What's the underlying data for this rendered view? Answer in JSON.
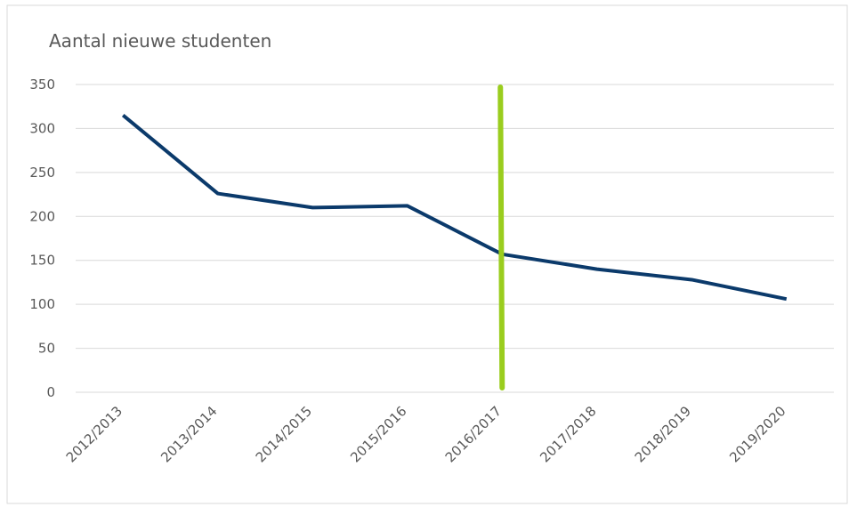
{
  "chart_data": {
    "type": "line",
    "title": "Aantal nieuwe studenten",
    "categories": [
      "2012/2013",
      "2013/2014",
      "2014/2015",
      "2015/2016",
      "2016/2017",
      "2017/2018",
      "2018/2019",
      "2019/2020"
    ],
    "series": [
      {
        "name": "Aantal nieuwe studenten",
        "color": "#0b3a6b",
        "values": [
          315,
          226,
          210,
          212,
          157,
          140,
          128,
          106
        ]
      }
    ],
    "ylim": [
      0,
      350
    ],
    "yticks": [
      0,
      50,
      100,
      150,
      200,
      250,
      300,
      350
    ],
    "grid": true,
    "marker": {
      "x": "2016/2017",
      "color": "#9acd1e"
    }
  }
}
